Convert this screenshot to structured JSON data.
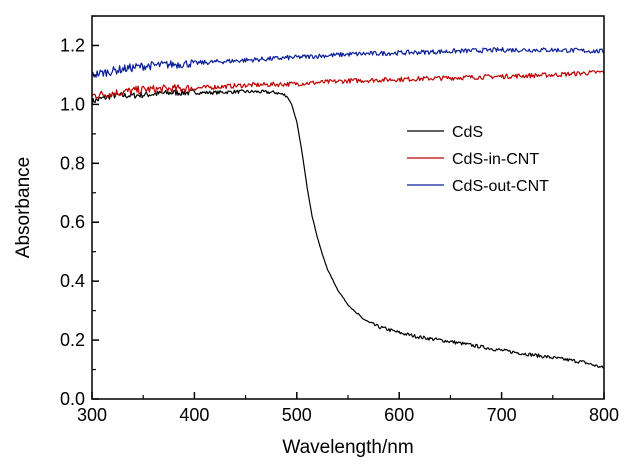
{
  "chart_data": {
    "type": "line",
    "xlabel": "Wavelength/nm",
    "ylabel": "Absorbance",
    "xlim": [
      300,
      800
    ],
    "ylim": [
      0.0,
      1.3
    ],
    "xticks": [
      300,
      400,
      500,
      600,
      700,
      800
    ],
    "xtick_labels": [
      "300",
      "400",
      "500",
      "600",
      "700",
      "800"
    ],
    "yticks": [
      0.0,
      0.2,
      0.4,
      0.6,
      0.8,
      1.0,
      1.2
    ],
    "ytick_labels": [
      "0.0",
      "0.2",
      "0.4",
      "0.6",
      "0.8",
      "1.0",
      "1.2"
    ],
    "grid": false,
    "legend_position": "center-right",
    "series": [
      {
        "name": "CdS",
        "color": "#000000",
        "points": [
          [
            300,
            1.01
          ],
          [
            320,
            1.03
          ],
          [
            340,
            1.03
          ],
          [
            360,
            1.035
          ],
          [
            380,
            1.04
          ],
          [
            400,
            1.04
          ],
          [
            420,
            1.04
          ],
          [
            440,
            1.043
          ],
          [
            460,
            1.043
          ],
          [
            480,
            1.04
          ],
          [
            490,
            1.03
          ],
          [
            495,
            1.0
          ],
          [
            500,
            0.94
          ],
          [
            505,
            0.84
          ],
          [
            510,
            0.72
          ],
          [
            515,
            0.62
          ],
          [
            520,
            0.55
          ],
          [
            525,
            0.49
          ],
          [
            530,
            0.44
          ],
          [
            540,
            0.37
          ],
          [
            550,
            0.32
          ],
          [
            560,
            0.285
          ],
          [
            570,
            0.26
          ],
          [
            580,
            0.245
          ],
          [
            600,
            0.225
          ],
          [
            620,
            0.21
          ],
          [
            650,
            0.195
          ],
          [
            700,
            0.165
          ],
          [
            750,
            0.14
          ],
          [
            780,
            0.125
          ],
          [
            800,
            0.105
          ]
        ]
      },
      {
        "name": "CdS-in-CNT",
        "color": "#c00000",
        "points": [
          [
            300,
            1.03
          ],
          [
            350,
            1.05
          ],
          [
            400,
            1.055
          ],
          [
            450,
            1.065
          ],
          [
            500,
            1.07
          ],
          [
            550,
            1.08
          ],
          [
            600,
            1.085
          ],
          [
            650,
            1.09
          ],
          [
            700,
            1.095
          ],
          [
            750,
            1.1
          ],
          [
            800,
            1.11
          ]
        ]
      },
      {
        "name": "CdS-out-CNT",
        "color": "#0a1f9a",
        "points": [
          [
            300,
            1.1
          ],
          [
            330,
            1.12
          ],
          [
            350,
            1.13
          ],
          [
            400,
            1.14
          ],
          [
            450,
            1.15
          ],
          [
            500,
            1.16
          ],
          [
            550,
            1.17
          ],
          [
            600,
            1.175
          ],
          [
            650,
            1.18
          ],
          [
            700,
            1.185
          ],
          [
            750,
            1.185
          ],
          [
            800,
            1.18
          ]
        ]
      }
    ]
  }
}
